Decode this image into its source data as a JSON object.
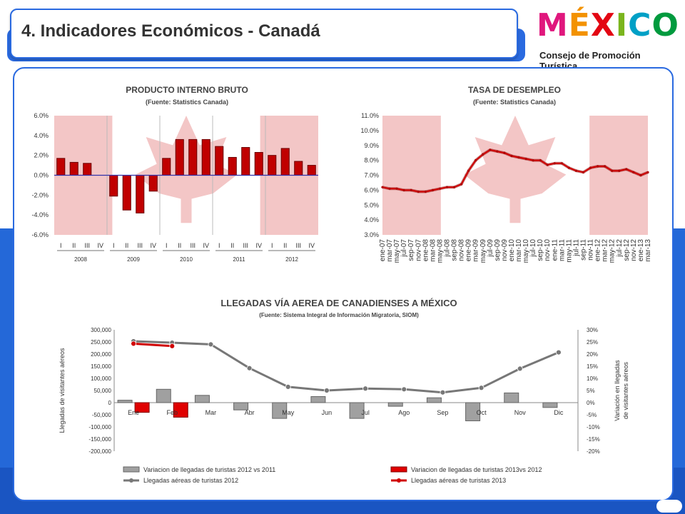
{
  "header": {
    "title": "4. Indicadores Económicos - Canadá"
  },
  "logo": {
    "word": "MÉXICO",
    "subtitle": "Consejo de Promoción Turística"
  },
  "colors": {
    "accent": "#2468d8",
    "bar_red": "#c00000",
    "line_dark": "#7a7a7a",
    "line_red": "#d00000",
    "bar_gray": "#a0a0a0"
  },
  "chart_data": [
    {
      "type": "bar",
      "title": "PRODUCTO INTERNO BRUTO",
      "subtitle": "(Fuente: Statistics Canada)",
      "ylim": [
        -6,
        6
      ],
      "yticks": [
        "6.0%",
        "4.0%",
        "2.0%",
        "0.0%",
        "-2.0%",
        "-4.0%",
        "-6.0%"
      ],
      "quarters": [
        "I",
        "II",
        "III",
        "IV"
      ],
      "years": [
        "2008",
        "2009",
        "2010",
        "2011",
        "2012"
      ],
      "values": [
        1.7,
        1.3,
        1.2,
        null,
        -2.1,
        -3.5,
        -3.8,
        -1.6,
        1.7,
        3.6,
        3.6,
        3.6,
        2.9,
        1.8,
        2.8,
        2.3,
        2.0,
        2.7,
        1.4,
        1.0
      ]
    },
    {
      "type": "line",
      "title": "TASA DE DESEMPLEO",
      "subtitle": "(Fuente: Statistics Canada)",
      "ylim": [
        3,
        11
      ],
      "yticks": [
        "11.0%",
        "10.0%",
        "9.0%",
        "8.0%",
        "7.0%",
        "6.0%",
        "5.0%",
        "4.0%",
        "3.0%"
      ],
      "xlabels": [
        "ene-07",
        "mar-07",
        "may-07",
        "jul-07",
        "sep-07",
        "nov-07",
        "ene-08",
        "mar-08",
        "may-08",
        "jul-08",
        "sep-08",
        "nov-08",
        "ene-09",
        "mar-09",
        "may-09",
        "jul-09",
        "sep-09",
        "nov-09",
        "ene-10",
        "mar-10",
        "may-10",
        "jul-10",
        "sep-10",
        "nov-10",
        "ene-11",
        "mar-11",
        "may-11",
        "jul-11",
        "sep-11",
        "nov-11",
        "ene-12",
        "mar-12",
        "may-12",
        "jul-12",
        "sep-12",
        "nov-12",
        "ene-13",
        "mar-13"
      ],
      "values": [
        6.2,
        6.1,
        6.1,
        6.0,
        6.0,
        5.9,
        5.9,
        6.0,
        6.1,
        6.2,
        6.2,
        6.4,
        7.3,
        8.0,
        8.4,
        8.7,
        8.6,
        8.5,
        8.3,
        8.2,
        8.1,
        8.0,
        8.0,
        7.7,
        7.8,
        7.8,
        7.5,
        7.3,
        7.2,
        7.5,
        7.6,
        7.6,
        7.3,
        7.3,
        7.4,
        7.2,
        7.0,
        7.2
      ]
    },
    {
      "type": "bar",
      "title": "LLEGADAS VÍA AEREA DE CANADIENSES A MÉXICO",
      "subtitle": "(Fuente: Sistema Integral de Información Migratoria, SIOM)",
      "categories": [
        "Ene",
        "Feb",
        "Mar",
        "Abr",
        "May",
        "Jun",
        "Jul",
        "Ago",
        "Sep",
        "Oct",
        "Nov",
        "Dic"
      ],
      "ylabel": "Llegadas de visitantes aéreos",
      "y2label": "Variación en llegadas de visitantes aéreos",
      "ylim": [
        -200000,
        300000
      ],
      "y2lim": [
        -20,
        30
      ],
      "yticks": [
        "300,000",
        "250,000",
        "200,000",
        "150,000",
        "100,000",
        "50,000",
        "0",
        "-50,000",
        "-100,000",
        "-150,000",
        "-200,000"
      ],
      "y2ticks": [
        "30%",
        "25%",
        "20%",
        "15%",
        "10%",
        "5%",
        "0%",
        "-5%",
        "-10%",
        "-15%",
        "-20%"
      ],
      "series": [
        {
          "name": "Variacion de llegadas de turistas 2012 vs 2011",
          "kind": "bar",
          "axis": "right",
          "values": [
            1,
            5.5,
            3,
            -3,
            -6.5,
            2.5,
            -6.5,
            -1.5,
            2,
            -7.5,
            4,
            -2
          ]
        },
        {
          "name": "Variacion de llegadas de turistas 2013vs 2012",
          "kind": "bar",
          "axis": "right",
          "values": [
            -4,
            -6,
            null,
            null,
            null,
            null,
            null,
            null,
            null,
            null,
            null,
            null
          ]
        },
        {
          "name": "Llegadas aéreas de turistas 2012",
          "kind": "line",
          "axis": "left",
          "values": [
            253000,
            247000,
            240000,
            142000,
            65000,
            50000,
            58000,
            55000,
            42000,
            61000,
            140000,
            207000
          ]
        },
        {
          "name": "Llegadas aéreas de turistas 2013",
          "kind": "line",
          "axis": "left",
          "values": [
            243000,
            233000,
            null,
            null,
            null,
            null,
            null,
            null,
            null,
            null,
            null,
            null
          ]
        }
      ]
    }
  ]
}
